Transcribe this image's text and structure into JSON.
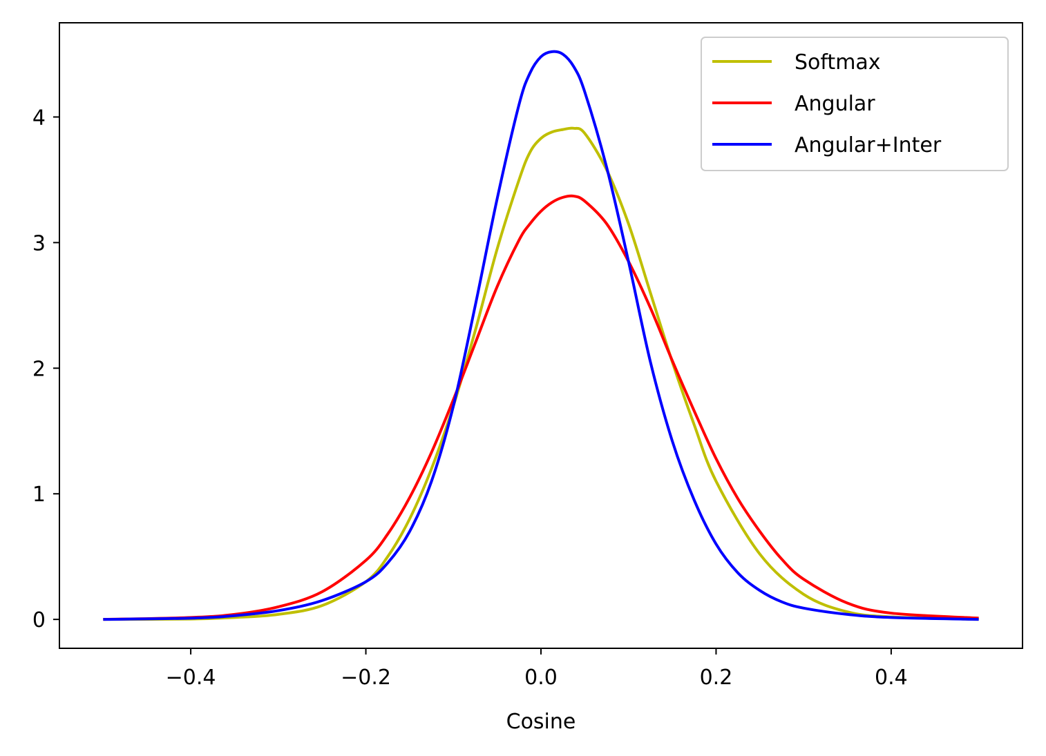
{
  "chart_data": {
    "type": "line",
    "title": "",
    "xlabel": "Cosine",
    "ylabel": "",
    "xlim": [
      -0.55,
      0.55
    ],
    "ylim": [
      -0.23,
      4.75
    ],
    "x_ticks": [
      -0.4,
      -0.2,
      0.0,
      0.2,
      0.4
    ],
    "x_tick_labels": [
      "−0.4",
      "−0.2",
      "0.0",
      "0.2",
      "0.4"
    ],
    "y_ticks": [
      0,
      1,
      2,
      3,
      4
    ],
    "y_tick_labels": [
      "0",
      "1",
      "2",
      "3",
      "4"
    ],
    "grid": false,
    "legend_position": "top-right",
    "series": [
      {
        "name": "Softmax",
        "color": "#bfbf00",
        "x": [
          -0.5,
          -0.4,
          -0.35,
          -0.3,
          -0.25,
          -0.2,
          -0.175,
          -0.15,
          -0.125,
          -0.1,
          -0.075,
          -0.05,
          -0.025,
          -0.0125,
          0.0,
          0.0125,
          0.025,
          0.0375,
          0.05,
          0.075,
          0.1,
          0.125,
          0.15,
          0.175,
          0.2,
          0.25,
          0.3,
          0.35,
          0.4,
          0.5
        ],
        "values": [
          0.0,
          0.003,
          0.015,
          0.04,
          0.11,
          0.3,
          0.5,
          0.8,
          1.2,
          1.7,
          2.3,
          2.95,
          3.5,
          3.72,
          3.83,
          3.88,
          3.9,
          3.91,
          3.87,
          3.58,
          3.15,
          2.6,
          2.05,
          1.55,
          1.1,
          0.52,
          0.2,
          0.06,
          0.02,
          0.0
        ]
      },
      {
        "name": "Angular",
        "color": "#ff0000",
        "x": [
          -0.5,
          -0.4,
          -0.35,
          -0.3,
          -0.25,
          -0.2,
          -0.175,
          -0.15,
          -0.125,
          -0.1,
          -0.075,
          -0.05,
          -0.025,
          -0.0125,
          0.0,
          0.0125,
          0.025,
          0.0375,
          0.05,
          0.075,
          0.1,
          0.125,
          0.15,
          0.175,
          0.2,
          0.225,
          0.25,
          0.275,
          0.3,
          0.35,
          0.4,
          0.5
        ],
        "values": [
          0.0,
          0.015,
          0.04,
          0.1,
          0.22,
          0.47,
          0.68,
          0.97,
          1.33,
          1.75,
          2.2,
          2.65,
          3.02,
          3.15,
          3.25,
          3.32,
          3.36,
          3.37,
          3.33,
          3.15,
          2.85,
          2.48,
          2.06,
          1.66,
          1.28,
          0.96,
          0.7,
          0.48,
          0.32,
          0.13,
          0.05,
          0.01
        ]
      },
      {
        "name": "Angular+Inter",
        "color": "#0000ff",
        "x": [
          -0.5,
          -0.4,
          -0.35,
          -0.3,
          -0.25,
          -0.2,
          -0.175,
          -0.15,
          -0.125,
          -0.1,
          -0.075,
          -0.05,
          -0.025,
          -0.0125,
          0.0,
          0.0125,
          0.025,
          0.0375,
          0.05,
          0.075,
          0.1,
          0.125,
          0.15,
          0.175,
          0.2,
          0.225,
          0.25,
          0.275,
          0.3,
          0.35,
          0.4,
          0.5
        ],
        "values": [
          0.0,
          0.01,
          0.03,
          0.07,
          0.15,
          0.3,
          0.45,
          0.7,
          1.1,
          1.7,
          2.5,
          3.35,
          4.1,
          4.35,
          4.48,
          4.52,
          4.5,
          4.4,
          4.2,
          3.6,
          2.85,
          2.05,
          1.42,
          0.95,
          0.6,
          0.37,
          0.23,
          0.14,
          0.09,
          0.04,
          0.015,
          0.0
        ]
      }
    ]
  }
}
